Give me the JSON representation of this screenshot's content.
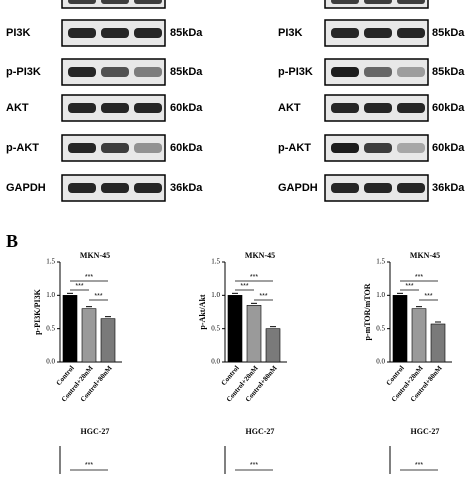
{
  "blots": [
    {
      "rows": [
        {
          "label": "PI3K",
          "kda": "85kDa"
        },
        {
          "label": "p-PI3K",
          "kda": "85kDa"
        },
        {
          "label": "AKT",
          "kda": "60kDa"
        },
        {
          "label": "p-AKT",
          "kda": "60kDa"
        },
        {
          "label": "GAPDH",
          "kda": "36kDa"
        }
      ]
    },
    {
      "rows": [
        {
          "label": "PI3K",
          "kda": "85kDa"
        },
        {
          "label": "p-PI3K",
          "kda": "85kDa"
        },
        {
          "label": "AKT",
          "kda": "60kDa"
        },
        {
          "label": "p-AKT",
          "kda": "60kDa"
        },
        {
          "label": "GAPDH",
          "kda": "36kDa"
        }
      ]
    }
  ],
  "panel_label": "B",
  "chart_data": [
    {
      "type": "bar",
      "title": "MKN-45",
      "y_label": "p-PI3K/PI3K",
      "categories": [
        "Control",
        "Control+20nM",
        "Control+80nM"
      ],
      "values": [
        1.0,
        0.8,
        0.65
      ],
      "colors": [
        "#000000",
        "#9a9a9a",
        "#7a7a7a"
      ],
      "ylim": [
        0,
        1.5
      ],
      "yticks": [
        {
          "value": 0,
          "label": "0.0"
        },
        {
          "value": 0.5,
          "label": "0.5"
        },
        {
          "value": 1,
          "label": "1.0"
        },
        {
          "value": 1.5,
          "label": "1.5"
        }
      ],
      "significance": [
        "***",
        "***",
        "***"
      ]
    },
    {
      "type": "bar",
      "title": "MKN-45",
      "y_label": "p-Akt/Akt",
      "categories": [
        "Control",
        "Control+20nM",
        "Control+80nM"
      ],
      "values": [
        1.0,
        0.85,
        0.5
      ],
      "colors": [
        "#000000",
        "#9a9a9a",
        "#7a7a7a"
      ],
      "ylim": [
        0,
        1.5
      ],
      "yticks": [
        {
          "value": 0,
          "label": "0.0"
        },
        {
          "value": 0.5,
          "label": "0.5"
        },
        {
          "value": 1,
          "label": "1.0"
        },
        {
          "value": 1.5,
          "label": "1.5"
        }
      ],
      "significance": [
        "***",
        "***",
        "***"
      ]
    },
    {
      "type": "bar",
      "title": "MKN-45",
      "y_label": "p-mTOR/mTOR",
      "categories": [
        "Control",
        "Control+20nM",
        "Control+80nM"
      ],
      "values": [
        1.0,
        0.8,
        0.57
      ],
      "colors": [
        "#000000",
        "#9a9a9a",
        "#7a7a7a"
      ],
      "ylim": [
        0,
        1.5
      ],
      "yticks": [
        {
          "value": 0,
          "label": "0.0"
        },
        {
          "value": 0.5,
          "label": "0.5"
        },
        {
          "value": 1,
          "label": "1.0"
        },
        {
          "value": 1.5,
          "label": "1.5"
        }
      ],
      "significance": [
        "***",
        "***",
        "***"
      ]
    }
  ],
  "bottom_charts": [
    {
      "title": "HGC-27",
      "significance": "***"
    },
    {
      "title": "HGC-27",
      "significance": "***"
    },
    {
      "title": "HGC-27",
      "significance": "***"
    }
  ]
}
